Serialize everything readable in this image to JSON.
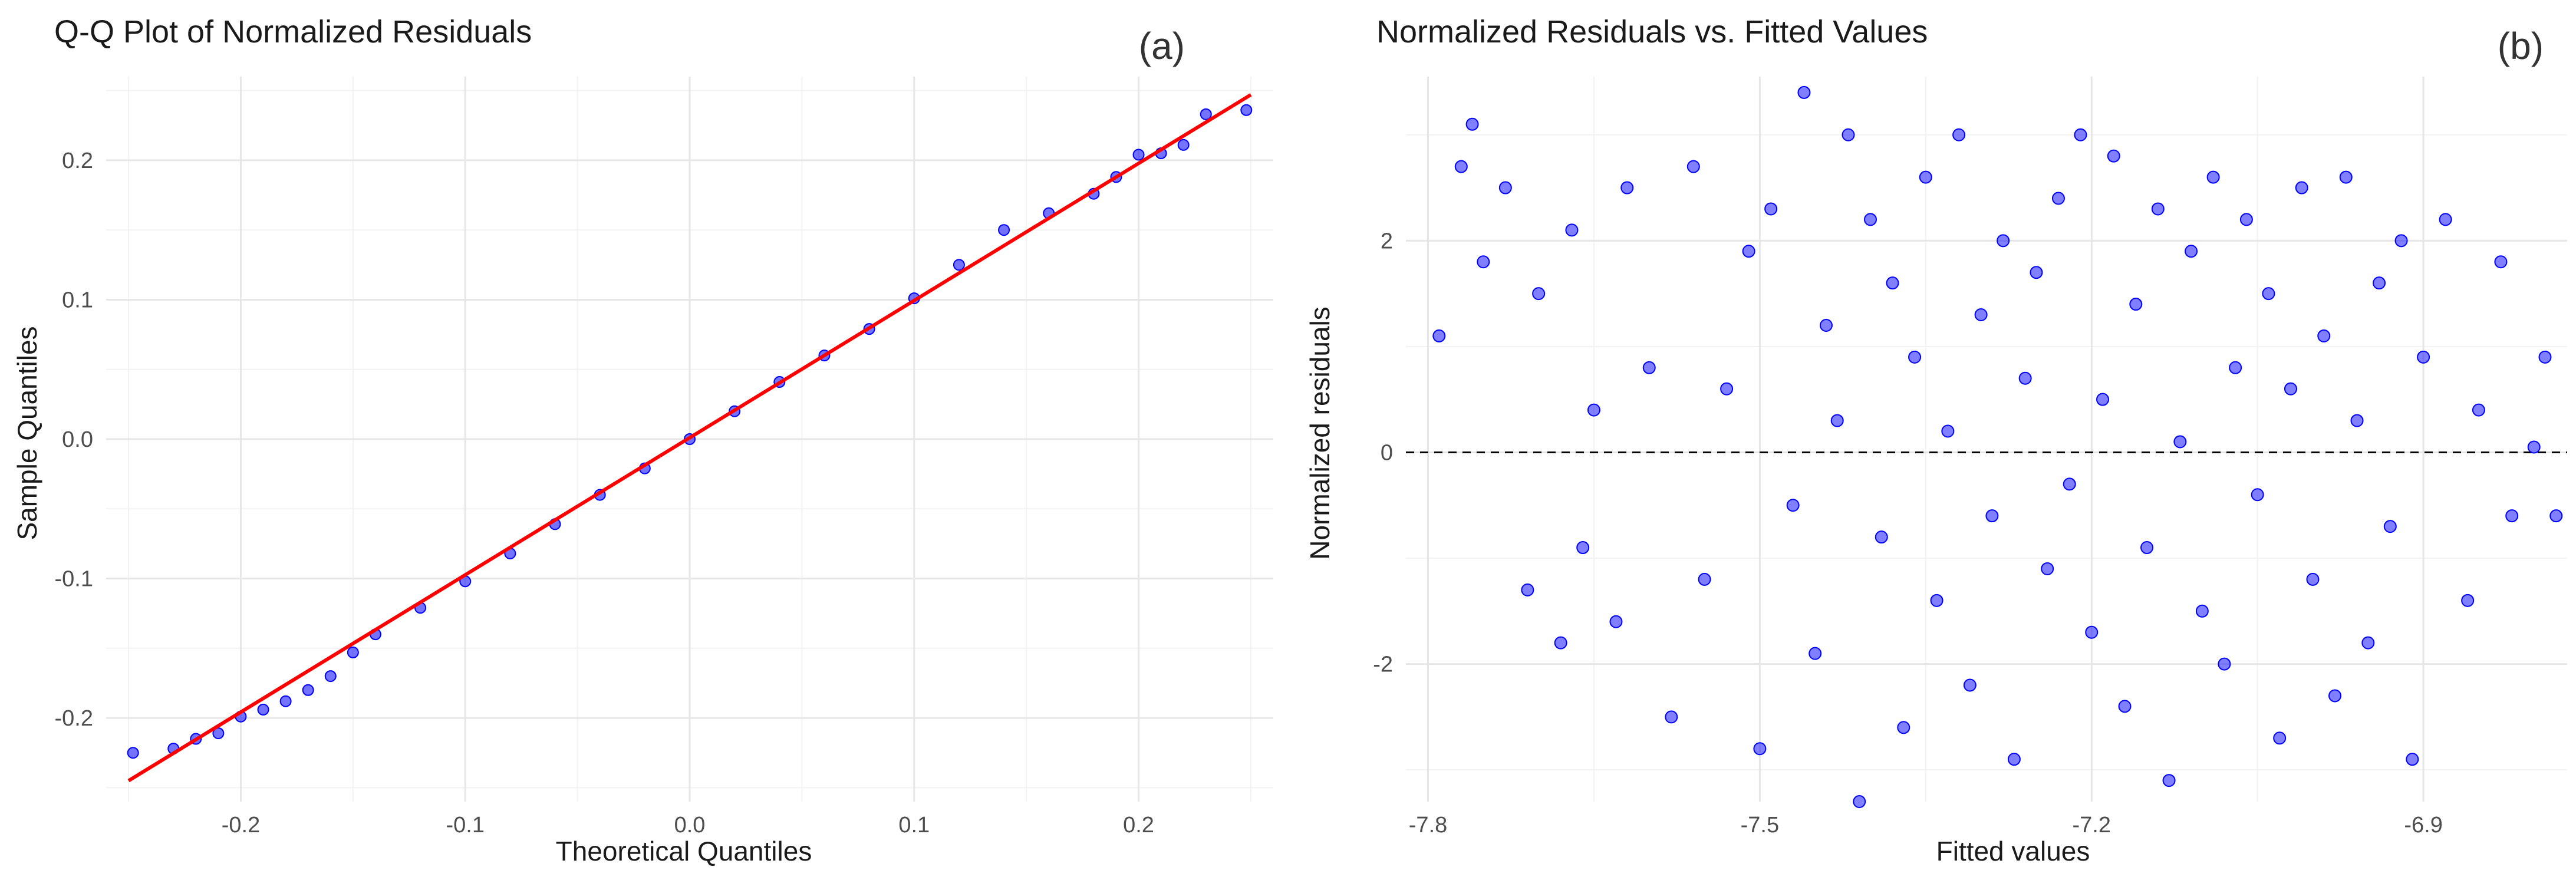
{
  "chart_data": [
    {
      "type": "scatter",
      "panel_tag": "(a)",
      "title": "Q-Q Plot of Normalized Residuals",
      "xlabel": "Theoretical Quantiles",
      "ylabel": "Sample Quantiles",
      "xlim": [
        -0.26,
        0.26
      ],
      "ylim": [
        -0.26,
        0.26
      ],
      "xticks": [
        -0.2,
        -0.1,
        0.0,
        0.1,
        0.2
      ],
      "xtick_labels": [
        "-0.2",
        "-0.1",
        "0.0",
        "0.1",
        "0.2"
      ],
      "yticks": [
        -0.2,
        -0.1,
        0.0,
        0.1,
        0.2
      ],
      "ytick_labels": [
        "-0.2",
        "-0.1",
        "0.0",
        "0.1",
        "0.2"
      ],
      "grid": true,
      "point_color": "#0000ff",
      "line_color": "#ff0000",
      "reference_line": {
        "x": [
          -0.25,
          0.25
        ],
        "y": [
          -0.245,
          0.247
        ]
      },
      "series": [
        {
          "name": "sample quantiles",
          "x": [
            -0.248,
            -0.23,
            -0.22,
            -0.21,
            -0.2,
            -0.19,
            -0.18,
            -0.17,
            -0.16,
            -0.15,
            -0.14,
            -0.12,
            -0.1,
            -0.08,
            -0.06,
            -0.04,
            -0.02,
            0.0,
            0.02,
            0.04,
            0.06,
            0.08,
            0.1,
            0.12,
            0.14,
            0.16,
            0.18,
            0.19,
            0.2,
            0.21,
            0.22,
            0.23,
            0.248
          ],
          "y": [
            -0.225,
            -0.222,
            -0.215,
            -0.211,
            -0.199,
            -0.194,
            -0.188,
            -0.18,
            -0.17,
            -0.153,
            -0.14,
            -0.121,
            -0.102,
            -0.082,
            -0.061,
            -0.04,
            -0.021,
            0.0,
            0.02,
            0.041,
            0.06,
            0.079,
            0.101,
            0.125,
            0.15,
            0.162,
            0.176,
            0.188,
            0.204,
            0.205,
            0.211,
            0.233,
            0.236
          ]
        }
      ]
    },
    {
      "type": "scatter",
      "panel_tag": "(b)",
      "title": "Normalized Residuals vs. Fitted Values",
      "xlabel": "Fitted values",
      "ylabel": "Normalized residuals",
      "xlim": [
        -7.82,
        -6.77
      ],
      "ylim": [
        -3.3,
        3.55
      ],
      "xticks": [
        -7.8,
        -7.5,
        -7.2,
        -6.9
      ],
      "xtick_labels": [
        "-7.8",
        "-7.5",
        "-7.2",
        "-6.9"
      ],
      "yticks": [
        -2,
        0,
        2
      ],
      "ytick_labels": [
        "-2",
        "0",
        "2"
      ],
      "grid": true,
      "point_color": "#0000ff",
      "hline": 0,
      "series": [
        {
          "name": "residuals",
          "x": [
            -7.79,
            -7.77,
            -7.76,
            -7.75,
            -7.73,
            -7.71,
            -7.7,
            -7.68,
            -7.67,
            -7.66,
            -7.65,
            -7.63,
            -7.62,
            -7.6,
            -7.58,
            -7.56,
            -7.55,
            -7.53,
            -7.51,
            -7.5,
            -7.49,
            -7.47,
            -7.46,
            -7.45,
            -7.44,
            -7.43,
            -7.42,
            -7.41,
            -7.4,
            -7.39,
            -7.38,
            -7.37,
            -7.36,
            -7.35,
            -7.34,
            -7.33,
            -7.32,
            -7.31,
            -7.3,
            -7.29,
            -7.28,
            -7.27,
            -7.26,
            -7.25,
            -7.24,
            -7.23,
            -7.22,
            -7.21,
            -7.2,
            -7.19,
            -7.18,
            -7.17,
            -7.16,
            -7.15,
            -7.14,
            -7.13,
            -7.12,
            -7.11,
            -7.1,
            -7.09,
            -7.08,
            -7.07,
            -7.06,
            -7.05,
            -7.04,
            -7.03,
            -7.02,
            -7.01,
            -7.0,
            -6.99,
            -6.98,
            -6.97,
            -6.96,
            -6.95,
            -6.94,
            -6.93,
            -6.92,
            -6.91,
            -6.9,
            -6.88,
            -6.86,
            -6.85,
            -6.83,
            -6.82,
            -6.8,
            -6.79,
            -6.78
          ],
          "y": [
            1.1,
            2.7,
            3.1,
            1.8,
            2.5,
            -1.3,
            1.5,
            -1.8,
            2.1,
            -0.9,
            0.4,
            -1.6,
            2.5,
            0.8,
            -2.5,
            2.7,
            -1.2,
            0.6,
            1.9,
            -2.8,
            2.3,
            -0.5,
            3.4,
            -1.9,
            1.2,
            0.3,
            3.0,
            -3.3,
            2.2,
            -0.8,
            1.6,
            -2.6,
            0.9,
            2.6,
            -1.4,
            0.2,
            3.0,
            -2.2,
            1.3,
            -0.6,
            2.0,
            -2.9,
            0.7,
            1.7,
            -1.1,
            2.4,
            -0.3,
            3.0,
            -1.7,
            0.5,
            2.8,
            -2.4,
            1.4,
            -0.9,
            2.3,
            -3.1,
            0.1,
            1.9,
            -1.5,
            2.6,
            -2.0,
            0.8,
            2.2,
            -0.4,
            1.5,
            -2.7,
            0.6,
            2.5,
            -1.2,
            1.1,
            -2.3,
            2.6,
            0.3,
            -1.8,
            1.6,
            -0.7,
            2.0,
            -2.9,
            0.9,
            2.2,
            -1.4,
            0.4,
            1.8,
            -0.6,
            0.05,
            0.9,
            -0.6
          ]
        }
      ]
    }
  ]
}
